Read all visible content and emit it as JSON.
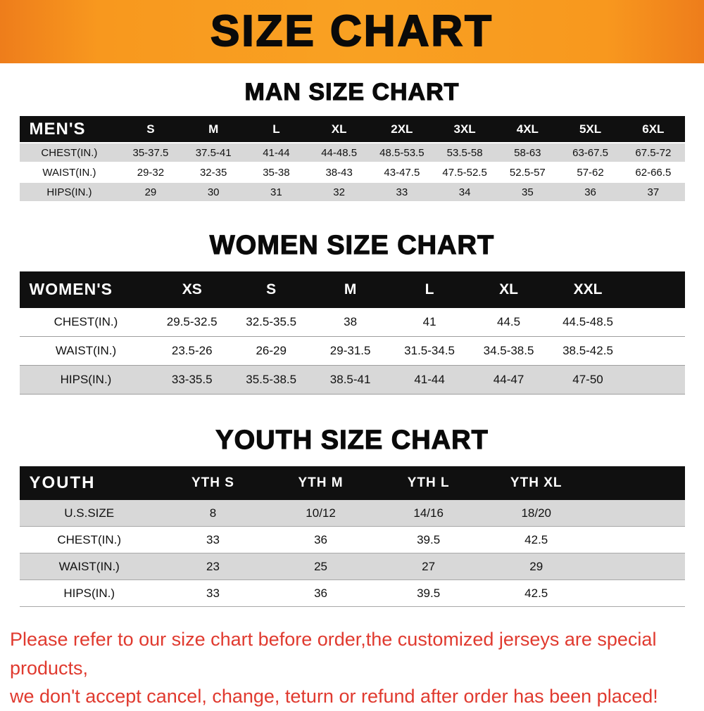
{
  "page": {
    "title": "SIZE CHART"
  },
  "sections": [
    {
      "title": "MAN SIZE CHART",
      "table": {
        "corner_label": "MEN'S",
        "columns": [
          "S",
          "M",
          "L",
          "XL",
          "2XL",
          "3XL",
          "4XL",
          "5XL",
          "6XL"
        ],
        "rows": [
          {
            "label": "CHEST(IN.)",
            "shaded": true,
            "values": [
              "35-37.5",
              "37.5-41",
              "41-44",
              "44-48.5",
              "48.5-53.5",
              "53.5-58",
              "58-63",
              "63-67.5",
              "67.5-72"
            ]
          },
          {
            "label": "WAIST(IN.)",
            "shaded": false,
            "values": [
              "29-32",
              "32-35",
              "35-38",
              "38-43",
              "43-47.5",
              "47.5-52.5",
              "52.5-57",
              "57-62",
              "62-66.5"
            ]
          },
          {
            "label": "HIPS(IN.)",
            "shaded": true,
            "values": [
              "29",
              "30",
              "31",
              "32",
              "33",
              "34",
              "35",
              "36",
              "37"
            ]
          }
        ]
      }
    },
    {
      "title": "WOMEN SIZE CHART",
      "table": {
        "corner_label": "WOMEN'S",
        "columns": [
          "XS",
          "S",
          "M",
          "L",
          "XL",
          "XXL"
        ],
        "rows": [
          {
            "label": "CHEST(IN.)",
            "shaded": false,
            "values": [
              "29.5-32.5",
              "32.5-35.5",
              "38",
              "41",
              "44.5",
              "44.5-48.5"
            ]
          },
          {
            "label": "WAIST(IN.)",
            "shaded": false,
            "values": [
              "23.5-26",
              "26-29",
              "29-31.5",
              "31.5-34.5",
              "34.5-38.5",
              "38.5-42.5"
            ]
          },
          {
            "label": "HIPS(IN.)",
            "shaded": true,
            "values": [
              "33-35.5",
              "35.5-38.5",
              "38.5-41",
              "41-44",
              "44-47",
              "47-50"
            ]
          }
        ]
      }
    },
    {
      "title": "YOUTH SIZE CHART",
      "table": {
        "corner_label": "YOUTH",
        "columns": [
          "YTH S",
          "YTH M",
          "YTH L",
          "YTH XL"
        ],
        "rows": [
          {
            "label": "U.S.SIZE",
            "shaded": true,
            "values": [
              "8",
              "10/12",
              "14/16",
              "18/20"
            ]
          },
          {
            "label": "CHEST(IN.)",
            "shaded": false,
            "values": [
              "33",
              "36",
              "39.5",
              "42.5"
            ]
          },
          {
            "label": "WAIST(IN.)",
            "shaded": true,
            "values": [
              "23",
              "25",
              "27",
              "29"
            ]
          },
          {
            "label": "HIPS(IN.)",
            "shaded": false,
            "values": [
              "33",
              "36",
              "39.5",
              "42.5"
            ]
          }
        ]
      }
    }
  ],
  "footer": {
    "line1": "Please refer to our size chart before order,the customized jerseys are special products,",
    "line2": "we don't accept cancel, change, teturn or refund after order has been placed!"
  },
  "colors": {
    "banner_orange": "#F8981E",
    "banner_orange_dark": "#EE7D1B",
    "header_black": "#101010",
    "row_gray": "#D8D8D8",
    "note_red": "#E03A2F"
  }
}
